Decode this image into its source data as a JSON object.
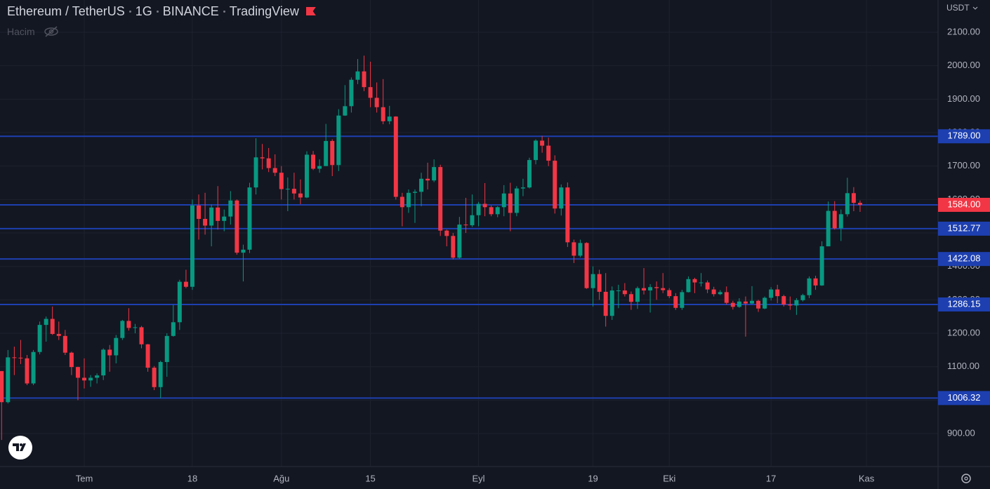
{
  "chart_data": {
    "type": "candlestick",
    "title": "Ethereum / TetherUS",
    "interval": "1G",
    "exchange": "BINANCE",
    "source": "TradingView",
    "volume_label": "Hacim",
    "currency": "USDT",
    "up_color": "#089981",
    "down_color": "#f23645",
    "grid": true,
    "open": [
      1087,
      994,
      1128,
      1127,
      1125,
      1050,
      1144,
      1225,
      1243,
      1198,
      1192,
      1142,
      1099,
      1067,
      1059,
      1067,
      1074,
      1151,
      1134,
      1186,
      1237,
      1216,
      1218,
      1167,
      1097,
      1039,
      1114,
      1192,
      1233,
      1354,
      1339,
      1582,
      1542,
      1522,
      1576,
      1536,
      1549,
      1597,
      1441,
      1450,
      1636,
      1726,
      1723,
      1694,
      1680,
      1631,
      1632,
      1618,
      1606,
      1734,
      1692,
      1700,
      1775,
      1703,
      1851,
      1879,
      1958,
      1983,
      1936,
      1904,
      1876,
      1834,
      1848,
      1608,
      1577,
      1620,
      1623,
      1662,
      1657,
      1697,
      1507,
      1491,
      1426,
      1525,
      1523,
      1553,
      1587,
      1577,
      1556,
      1577,
      1618,
      1560,
      1633,
      1636,
      1718,
      1776,
      1761,
      1716,
      1573,
      1636,
      1472,
      1432,
      1470,
      1335,
      1377,
      1324,
      1252,
      1328,
      1328,
      1317,
      1294,
      1335,
      1328,
      1338,
      1335,
      1329,
      1311,
      1276,
      1323,
      1362,
      1352,
      1352,
      1331,
      1317,
      1323,
      1291,
      1279,
      1295,
      1289,
      1297,
      1274,
      1306,
      1331,
      1311,
      1286,
      1283,
      1299,
      1314,
      1364,
      1343,
      1460,
      1566,
      1514,
      1556,
      1619,
      1590
    ],
    "high": [
      1087,
      1150,
      1160,
      1180,
      1135,
      1150,
      1235,
      1250,
      1280,
      1235,
      1210,
      1145,
      1100,
      1125,
      1075,
      1080,
      1155,
      1165,
      1195,
      1240,
      1275,
      1228,
      1222,
      1168,
      1102,
      1118,
      1200,
      1285,
      1360,
      1390,
      1600,
      1615,
      1620,
      1585,
      1640,
      1570,
      1625,
      1600,
      1465,
      1650,
      1783,
      1766,
      1754,
      1735,
      1700,
      1666,
      1680,
      1660,
      1744,
      1745,
      1720,
      1826,
      1780,
      1870,
      1942,
      1965,
      2020,
      2030,
      2012,
      1950,
      1960,
      1880,
      1849,
      1620,
      1630,
      1630,
      1680,
      1710,
      1720,
      1704,
      1510,
      1500,
      1548,
      1605,
      1615,
      1593,
      1649,
      1582,
      1580,
      1643,
      1650,
      1640,
      1662,
      1725,
      1780,
      1790,
      1785,
      1732,
      1645,
      1651,
      1480,
      1480,
      1472,
      1400,
      1390,
      1380,
      1340,
      1345,
      1350,
      1325,
      1340,
      1395,
      1347,
      1355,
      1380,
      1335,
      1320,
      1330,
      1370,
      1366,
      1380,
      1358,
      1339,
      1329,
      1340,
      1297,
      1305,
      1310,
      1341,
      1300,
      1310,
      1338,
      1345,
      1315,
      1310,
      1305,
      1318,
      1370,
      1372,
      1475,
      1594,
      1595,
      1570,
      1665,
      1637,
      1597
    ],
    "low": [
      881,
      990,
      1075,
      1108,
      1045,
      1045,
      1137,
      1175,
      1195,
      1180,
      1135,
      1075,
      1000,
      1035,
      1040,
      1050,
      1060,
      1085,
      1110,
      1180,
      1208,
      1200,
      1155,
      1085,
      1030,
      1006,
      1070,
      1190,
      1210,
      1335,
      1330,
      1480,
      1495,
      1460,
      1510,
      1505,
      1525,
      1435,
      1355,
      1440,
      1615,
      1690,
      1682,
      1670,
      1600,
      1565,
      1600,
      1586,
      1604,
      1688,
      1680,
      1700,
      1670,
      1685,
      1850,
      1860,
      1945,
      1924,
      1876,
      1860,
      1825,
      1825,
      1600,
      1520,
      1560,
      1530,
      1580,
      1630,
      1652,
      1491,
      1460,
      1421,
      1423,
      1500,
      1518,
      1520,
      1550,
      1550,
      1547,
      1550,
      1505,
      1550,
      1610,
      1633,
      1705,
      1740,
      1700,
      1558,
      1552,
      1458,
      1410,
      1427,
      1333,
      1280,
      1300,
      1220,
      1240,
      1275,
      1310,
      1270,
      1273,
      1316,
      1262,
      1300,
      1320,
      1305,
      1270,
      1270,
      1322,
      1320,
      1340,
      1320,
      1310,
      1314,
      1286,
      1271,
      1276,
      1190,
      1287,
      1264,
      1272,
      1298,
      1290,
      1280,
      1270,
      1255,
      1295,
      1305,
      1330,
      1342,
      1460,
      1510,
      1476,
      1549,
      1565,
      1563
    ],
    "close": [
      994,
      1128,
      1127,
      1125,
      1050,
      1144,
      1225,
      1243,
      1198,
      1192,
      1142,
      1099,
      1067,
      1059,
      1067,
      1074,
      1151,
      1134,
      1186,
      1237,
      1216,
      1218,
      1167,
      1097,
      1039,
      1114,
      1192,
      1233,
      1354,
      1339,
      1582,
      1542,
      1522,
      1576,
      1536,
      1549,
      1597,
      1441,
      1450,
      1636,
      1726,
      1723,
      1694,
      1680,
      1631,
      1632,
      1618,
      1606,
      1734,
      1692,
      1700,
      1775,
      1703,
      1851,
      1879,
      1958,
      1983,
      1936,
      1904,
      1876,
      1834,
      1848,
      1608,
      1577,
      1620,
      1623,
      1662,
      1657,
      1697,
      1507,
      1491,
      1426,
      1525,
      1523,
      1553,
      1587,
      1577,
      1556,
      1577,
      1618,
      1560,
      1633,
      1636,
      1718,
      1776,
      1761,
      1716,
      1573,
      1636,
      1472,
      1432,
      1470,
      1335,
      1377,
      1324,
      1252,
      1328,
      1328,
      1317,
      1294,
      1335,
      1328,
      1338,
      1335,
      1329,
      1311,
      1276,
      1323,
      1362,
      1352,
      1352,
      1331,
      1317,
      1323,
      1291,
      1279,
      1295,
      1289,
      1297,
      1274,
      1306,
      1331,
      1311,
      1286,
      1283,
      1299,
      1314,
      1364,
      1343,
      1460,
      1566,
      1514,
      1556,
      1619,
      1590,
      1584
    ],
    "xlim": [
      -0.25,
      147.26
    ],
    "xticks": [
      {
        "value": 13,
        "label": "Tem"
      },
      {
        "value": 30,
        "label": "18"
      },
      {
        "value": 44,
        "label": "Ağu"
      },
      {
        "value": 58,
        "label": "15"
      },
      {
        "value": 75,
        "label": "Eyl"
      },
      {
        "value": 93,
        "label": "19"
      },
      {
        "value": 105,
        "label": "Eki"
      },
      {
        "value": 121,
        "label": "17"
      },
      {
        "value": 136,
        "label": "Kas"
      }
    ],
    "ylim": [
      801.5,
      2196.5
    ],
    "yticks": [
      {
        "value": 900,
        "label": "900.00"
      },
      {
        "value": 1000,
        "label": "1000.00"
      },
      {
        "value": 1100,
        "label": "1100.00"
      },
      {
        "value": 1200,
        "label": "1200.00"
      },
      {
        "value": 1300,
        "label": "1300.00"
      },
      {
        "value": 1400,
        "label": "1400.00"
      },
      {
        "value": 1500,
        "label": "1500.00"
      },
      {
        "value": 1600,
        "label": "1600.00"
      },
      {
        "value": 1700,
        "label": "1700.00"
      },
      {
        "value": 1800,
        "label": "1800.00"
      },
      {
        "value": 1900,
        "label": "1900.00"
      },
      {
        "value": 2000,
        "label": "2000.00"
      },
      {
        "value": 2100,
        "label": "2100.00"
      }
    ],
    "level_color": "#1d3fb0",
    "levels": [
      {
        "value": 1789,
        "label": "1789.00",
        "color": "#1d3fb0"
      },
      {
        "value": 1584,
        "label": "1584.00",
        "color": "#f23645"
      },
      {
        "value": 1512.77,
        "label": "1512.77",
        "color": "#1d3fb0"
      },
      {
        "value": 1422.08,
        "label": "1422.08",
        "color": "#1d3fb0"
      },
      {
        "value": 1286.15,
        "label": "1286.15",
        "color": "#1d3fb0"
      },
      {
        "value": 1006.32,
        "label": "1006.32",
        "color": "#1d3fb0"
      }
    ]
  }
}
